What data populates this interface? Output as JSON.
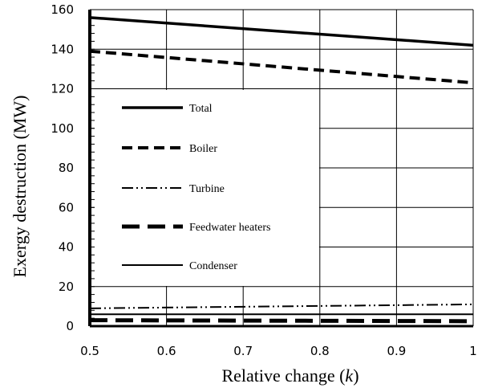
{
  "chart_data": {
    "type": "line",
    "title": "",
    "xlabel": "Relative change (",
    "xlabel_var": "k",
    "xlabel_close": ")",
    "ylabel": "Exergy destruction  (MW)",
    "xlim": [
      0.5,
      1
    ],
    "ylim": [
      0,
      160
    ],
    "xticks": [
      "0.5",
      "0.6",
      "0.7",
      "0.8",
      "0.9",
      "1"
    ],
    "yticks": [
      "0",
      "20",
      "40",
      "60",
      "80",
      "100",
      "120",
      "140",
      "160"
    ],
    "grid": true,
    "legend_position": "left",
    "x": [
      0.5,
      1.0
    ],
    "series": [
      {
        "name": "Total",
        "values": [
          156,
          142
        ],
        "style": "solid-thick"
      },
      {
        "name": "Boiler",
        "values": [
          139,
          123
        ],
        "style": "dashed"
      },
      {
        "name": "Turbine",
        "values": [
          9,
          11
        ],
        "style": "dash-dot-dot"
      },
      {
        "name": "Feedwater heaters",
        "values": [
          3,
          2.5
        ],
        "style": "long-dash-thick"
      },
      {
        "name": "Condenser",
        "values": [
          6,
          6
        ],
        "style": "solid-thin"
      }
    ]
  }
}
